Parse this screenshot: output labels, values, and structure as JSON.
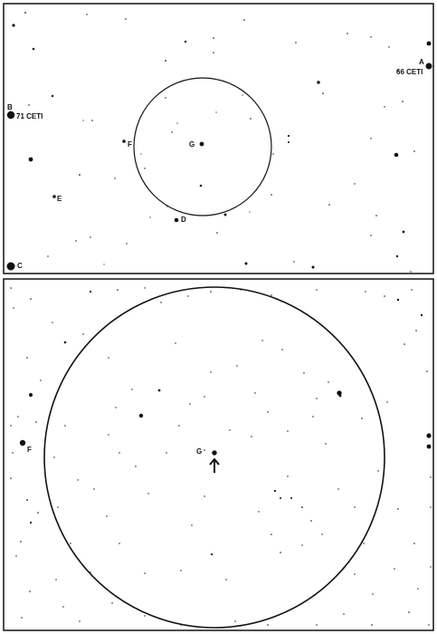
{
  "top_chart": {
    "labels": {
      "a": "A",
      "cet66": "66 CETI",
      "b": "B",
      "cet71": "71 CETI",
      "c": "C",
      "d": "D",
      "e": "E",
      "f": "F",
      "g": "G"
    }
  },
  "bottom_chart": {
    "labels": {
      "f": "F",
      "g": "G"
    }
  },
  "colors": {
    "ink": "#111111",
    "paper": "#ffffff"
  }
}
